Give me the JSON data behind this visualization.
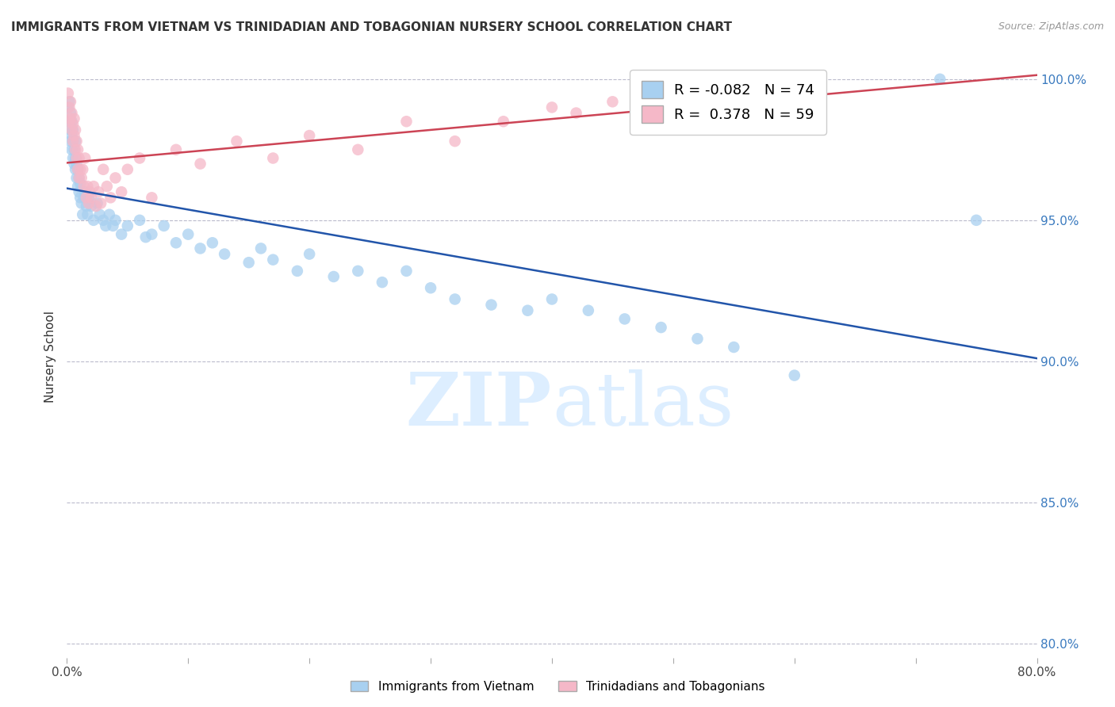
{
  "title": "IMMIGRANTS FROM VIETNAM VS TRINIDADIAN AND TOBAGONIAN NURSERY SCHOOL CORRELATION CHART",
  "source": "Source: ZipAtlas.com",
  "ylabel": "Nursery School",
  "legend_label1": "Immigrants from Vietnam",
  "legend_label2": "Trinidadians and Tobagonians",
  "R1": -0.082,
  "N1": 74,
  "R2": 0.378,
  "N2": 59,
  "xlim": [
    0.0,
    0.8
  ],
  "ylim": [
    0.795,
    1.008
  ],
  "yticks": [
    0.8,
    0.85,
    0.9,
    0.95,
    1.0
  ],
  "ytick_labels": [
    "80.0%",
    "85.0%",
    "90.0%",
    "95.0%",
    "100.0%"
  ],
  "xticks": [
    0.0,
    0.1,
    0.2,
    0.3,
    0.4,
    0.5,
    0.6,
    0.7,
    0.8
  ],
  "xtick_labels": [
    "0.0%",
    "",
    "",
    "",
    "",
    "",
    "",
    "",
    "80.0%"
  ],
  "color_blue": "#a8d0f0",
  "color_pink": "#f5b8c8",
  "line_color_blue": "#2255aa",
  "line_color_pink": "#cc4455",
  "watermark_color": "#ddeeff",
  "blue_x": [
    0.001,
    0.002,
    0.002,
    0.003,
    0.003,
    0.003,
    0.004,
    0.004,
    0.004,
    0.005,
    0.005,
    0.005,
    0.006,
    0.006,
    0.007,
    0.007,
    0.007,
    0.008,
    0.008,
    0.009,
    0.009,
    0.01,
    0.01,
    0.011,
    0.011,
    0.012,
    0.013,
    0.014,
    0.015,
    0.016,
    0.017,
    0.018,
    0.02,
    0.022,
    0.025,
    0.027,
    0.03,
    0.032,
    0.035,
    0.038,
    0.04,
    0.045,
    0.05,
    0.06,
    0.065,
    0.07,
    0.08,
    0.09,
    0.1,
    0.11,
    0.12,
    0.13,
    0.15,
    0.16,
    0.17,
    0.19,
    0.2,
    0.22,
    0.24,
    0.26,
    0.28,
    0.3,
    0.32,
    0.35,
    0.38,
    0.4,
    0.43,
    0.46,
    0.49,
    0.52,
    0.55,
    0.6,
    0.72,
    0.75
  ],
  "blue_y": [
    0.99,
    0.985,
    0.992,
    0.978,
    0.982,
    0.988,
    0.975,
    0.98,
    0.985,
    0.972,
    0.978,
    0.982,
    0.97,
    0.975,
    0.968,
    0.972,
    0.978,
    0.965,
    0.97,
    0.962,
    0.968,
    0.96,
    0.965,
    0.958,
    0.963,
    0.956,
    0.952,
    0.958,
    0.96,
    0.955,
    0.952,
    0.958,
    0.955,
    0.95,
    0.956,
    0.952,
    0.95,
    0.948,
    0.952,
    0.948,
    0.95,
    0.945,
    0.948,
    0.95,
    0.944,
    0.945,
    0.948,
    0.942,
    0.945,
    0.94,
    0.942,
    0.938,
    0.935,
    0.94,
    0.936,
    0.932,
    0.938,
    0.93,
    0.932,
    0.928,
    0.932,
    0.926,
    0.922,
    0.92,
    0.918,
    0.922,
    0.918,
    0.915,
    0.912,
    0.908,
    0.905,
    0.895,
    1.0,
    0.95
  ],
  "pink_x": [
    0.001,
    0.002,
    0.002,
    0.003,
    0.003,
    0.004,
    0.004,
    0.005,
    0.005,
    0.006,
    0.006,
    0.007,
    0.007,
    0.008,
    0.008,
    0.009,
    0.009,
    0.01,
    0.01,
    0.011,
    0.012,
    0.013,
    0.014,
    0.015,
    0.016,
    0.017,
    0.018,
    0.019,
    0.02,
    0.022,
    0.024,
    0.026,
    0.028,
    0.03,
    0.033,
    0.036,
    0.04,
    0.045,
    0.05,
    0.06,
    0.07,
    0.09,
    0.11,
    0.14,
    0.17,
    0.2,
    0.24,
    0.28,
    0.32,
    0.36,
    0.4,
    0.42,
    0.45,
    0.47,
    0.49,
    0.51,
    0.53,
    0.56,
    0.58
  ],
  "pink_y": [
    0.995,
    0.99,
    0.985,
    0.992,
    0.986,
    0.988,
    0.982,
    0.984,
    0.978,
    0.986,
    0.98,
    0.982,
    0.975,
    0.978,
    0.972,
    0.975,
    0.968,
    0.972,
    0.965,
    0.968,
    0.965,
    0.968,
    0.962,
    0.972,
    0.958,
    0.962,
    0.956,
    0.96,
    0.958,
    0.962,
    0.955,
    0.96,
    0.956,
    0.968,
    0.962,
    0.958,
    0.965,
    0.96,
    0.968,
    0.972,
    0.958,
    0.975,
    0.97,
    0.978,
    0.972,
    0.98,
    0.975,
    0.985,
    0.978,
    0.985,
    0.99,
    0.988,
    0.992,
    0.99,
    0.995,
    0.988,
    0.992,
    0.995,
    0.99
  ]
}
